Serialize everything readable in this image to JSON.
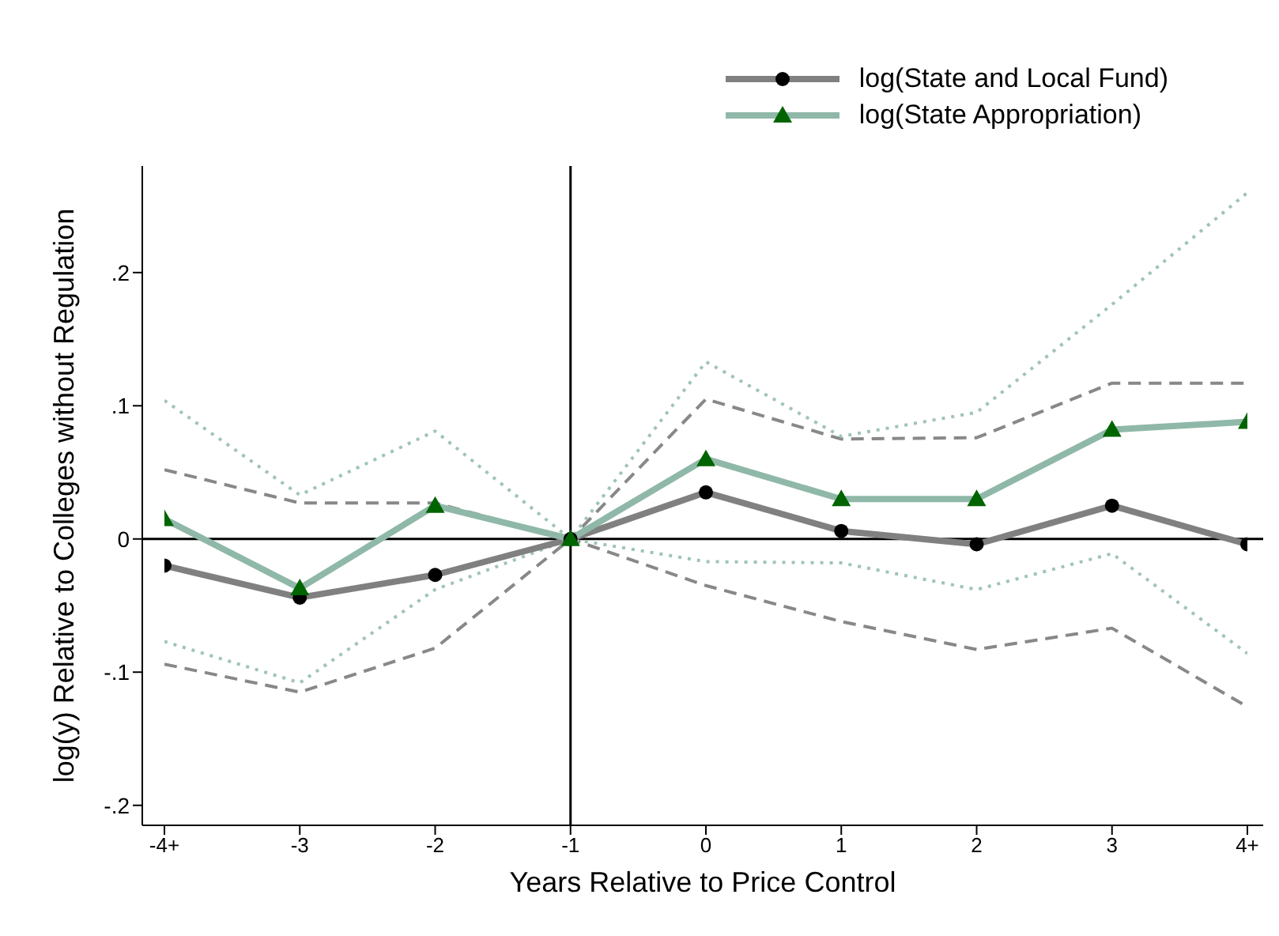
{
  "chart_data": {
    "type": "line",
    "xlabel": "Years Relative to Price Control",
    "ylabel": "log(y) Relative to Colleges without Regulation",
    "categories": [
      "-4+",
      "-3",
      "-2",
      "-1",
      "0",
      "1",
      "2",
      "3",
      "4+"
    ],
    "ylim": [
      -0.215,
      0.28
    ],
    "yticks": [
      {
        "value": -0.2,
        "label": "-.2"
      },
      {
        "value": -0.1,
        "label": "-.1"
      },
      0,
      {
        "value": 0.1,
        "label": ".1"
      },
      {
        "value": 0.2,
        "label": ".2"
      }
    ],
    "grid": false,
    "legend": "top right",
    "ref_lines": [
      {
        "axis": "x",
        "value": "-1",
        "color": "#000000",
        "line_style": "solid"
      },
      {
        "axis": "y",
        "value": 0,
        "color": "#000000",
        "line_style": "solid"
      }
    ],
    "series": [
      {
        "color": "#888888",
        "line_style": "dashed",
        "marker": "none",
        "values": [
          0.052,
          0.027,
          0.027,
          0,
          0.105,
          0.075,
          0.076,
          0.117,
          0.117
        ]
      },
      {
        "color": "#888888",
        "line_style": "dashed",
        "marker": "none",
        "values": [
          -0.094,
          -0.115,
          -0.082,
          0,
          -0.035,
          -0.062,
          -0.083,
          -0.067,
          -0.126
        ]
      },
      {
        "color": "#9fc4b5",
        "line_style": "dotted",
        "marker": "none",
        "values": [
          0.104,
          0.033,
          0.081,
          0,
          0.133,
          0.077,
          0.095,
          0.176,
          0.26
        ]
      },
      {
        "color": "#9fc4b5",
        "line_style": "dotted",
        "marker": "none",
        "values": [
          -0.077,
          -0.108,
          -0.038,
          0,
          -0.017,
          -0.018,
          -0.038,
          -0.011,
          -0.086
        ]
      },
      {
        "name": "log(State and Local Fund)",
        "color": "#808080",
        "line_style": "solid",
        "marker": "circle",
        "colors": [
          "#000000",
          "#000000",
          "#000000",
          "#000000",
          "#000000",
          "#000000",
          "#000000",
          "#000000",
          "#000000"
        ],
        "values": [
          -0.02,
          -0.044,
          -0.027,
          0,
          0.035,
          0.006,
          -0.004,
          0.025,
          -0.004
        ]
      },
      {
        "name": "log(State Appropriation)",
        "color": "#8fb8a8",
        "line_style": "solid",
        "marker": "triangle",
        "colors": [
          "#006400",
          "#006400",
          "#006400",
          "#006400",
          "#006400",
          "#006400",
          "#006400",
          "#006400",
          "#006400"
        ],
        "values": [
          0.015,
          -0.037,
          0.025,
          0,
          0.06,
          0.03,
          0.03,
          0.082,
          0.088
        ]
      }
    ]
  }
}
